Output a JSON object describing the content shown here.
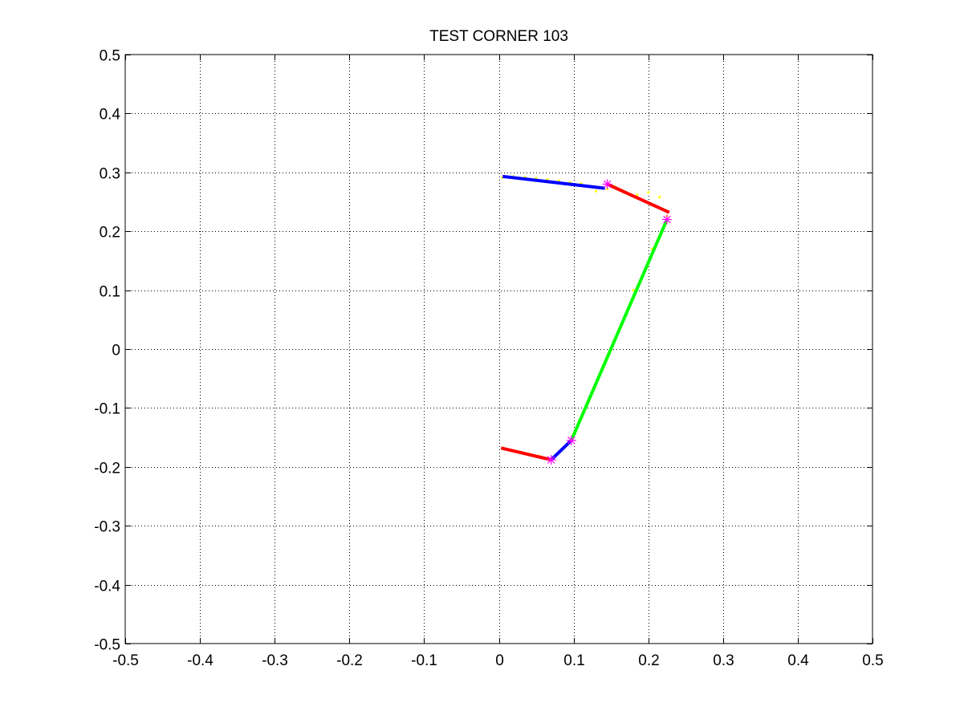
{
  "chart_data": {
    "type": "line",
    "title": "TEST CORNER 103",
    "xlabel": "",
    "ylabel": "",
    "xlim": [
      -0.5,
      0.5
    ],
    "ylim": [
      -0.5,
      0.5
    ],
    "grid": true,
    "grid_style": "dotted",
    "x_ticks": [
      -0.5,
      -0.4,
      -0.3,
      -0.2,
      -0.1,
      0,
      0.1,
      0.2,
      0.3,
      0.4,
      0.5
    ],
    "y_ticks": [
      -0.5,
      -0.4,
      -0.3,
      -0.2,
      -0.1,
      0,
      0.1,
      0.2,
      0.3,
      0.4,
      0.5
    ],
    "x_tick_labels": [
      "-0.5",
      "-0.4",
      "-0.3",
      "-0.2",
      "-0.1",
      "0",
      "0.1",
      "0.2",
      "0.3",
      "0.4",
      "0.5"
    ],
    "y_tick_labels": [
      "-0.5",
      "-0.4",
      "-0.3",
      "-0.2",
      "-0.1",
      "0",
      "0.1",
      "0.2",
      "0.3",
      "0.4",
      "0.5"
    ],
    "series": [
      {
        "color": "#ffff00",
        "style": "points",
        "points": [
          [
            0.005,
            0.291
          ],
          [
            0.02,
            0.293
          ],
          [
            0.035,
            0.292
          ],
          [
            0.05,
            0.29
          ],
          [
            0.065,
            0.288
          ],
          [
            0.08,
            0.286
          ],
          [
            0.095,
            0.283
          ],
          [
            0.11,
            0.281
          ],
          [
            0.13,
            0.268
          ],
          [
            0.145,
            0.272
          ],
          [
            0.155,
            0.276
          ],
          [
            0.17,
            0.266
          ],
          [
            0.185,
            0.262
          ],
          [
            0.2,
            0.266
          ],
          [
            0.215,
            0.258
          ],
          [
            0.225,
            0.226
          ],
          [
            0.205,
            0.17
          ],
          [
            0.18,
            0.1
          ],
          [
            0.16,
            0.03
          ],
          [
            0.14,
            -0.03
          ],
          [
            0.12,
            -0.09
          ],
          [
            0.1,
            -0.145
          ],
          [
            0.005,
            -0.168
          ],
          [
            0.03,
            -0.175
          ],
          [
            0.055,
            -0.182
          ]
        ]
      },
      {
        "color": "#0000ff",
        "style": "line",
        "points": [
          [
            0.005,
            0.293
          ],
          [
            0.142,
            0.273
          ]
        ]
      },
      {
        "color": "#ff0000",
        "style": "line",
        "points": [
          [
            0.145,
            0.28
          ],
          [
            0.228,
            0.232
          ]
        ]
      },
      {
        "color": "#00ff00",
        "style": "line",
        "points": [
          [
            0.225,
            0.22
          ],
          [
            0.097,
            -0.155
          ]
        ]
      },
      {
        "color": "#0000ff",
        "style": "line",
        "points": [
          [
            0.097,
            -0.155
          ],
          [
            0.07,
            -0.188
          ]
        ]
      },
      {
        "color": "#ff0000",
        "style": "line",
        "points": [
          [
            0.003,
            -0.168
          ],
          [
            0.07,
            -0.188
          ]
        ]
      },
      {
        "color": "#ff00ff",
        "style": "star-markers",
        "points": [
          [
            0.145,
            0.28
          ],
          [
            0.225,
            0.22
          ],
          [
            0.097,
            -0.155
          ],
          [
            0.07,
            -0.188
          ]
        ]
      }
    ]
  }
}
